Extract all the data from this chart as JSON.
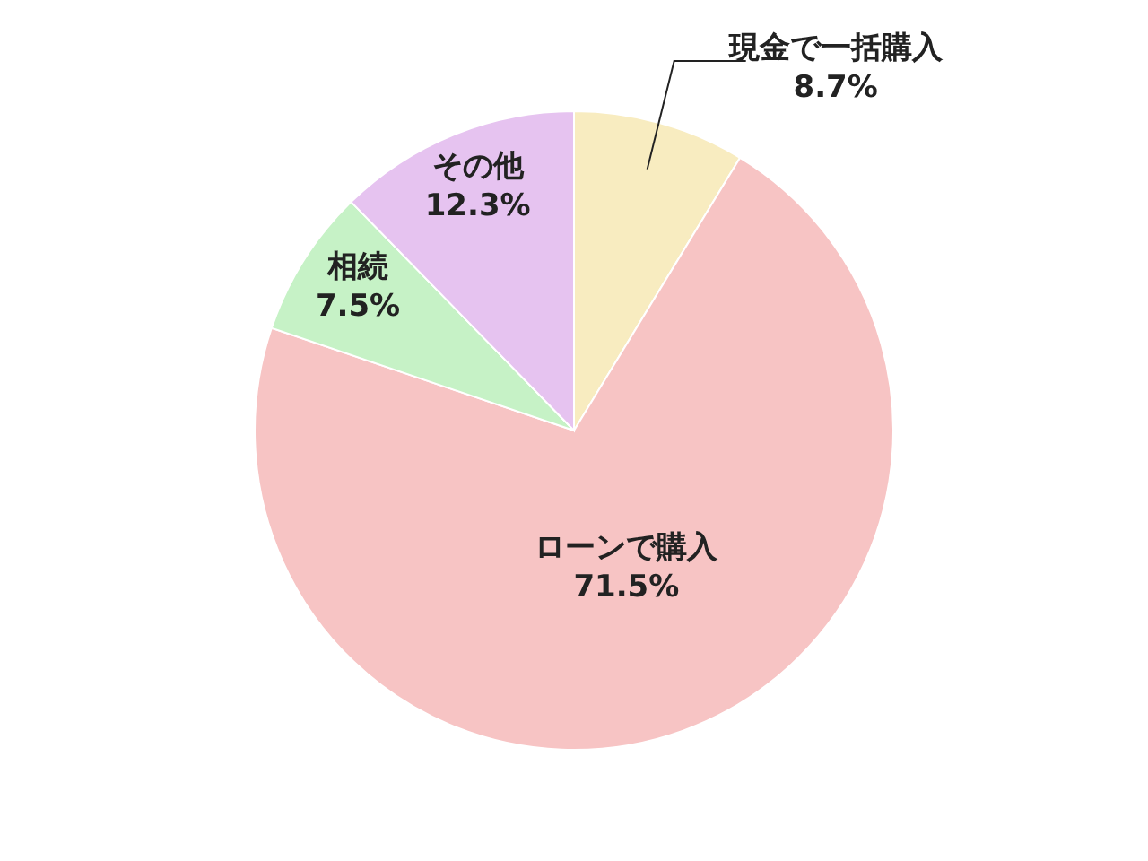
{
  "chart_data": {
    "type": "pie",
    "categories": [
      "現金で一括購入",
      "ローンで購入",
      "相続",
      "その他"
    ],
    "values": [
      8.7,
      71.5,
      7.5,
      12.3
    ],
    "colors": [
      "#f8ecc0",
      "#f7c4c4",
      "#c6f2c6",
      "#e6c3f0"
    ],
    "value_labels": [
      "8.7%",
      "71.5%",
      "7.5%",
      "12.3%"
    ]
  }
}
